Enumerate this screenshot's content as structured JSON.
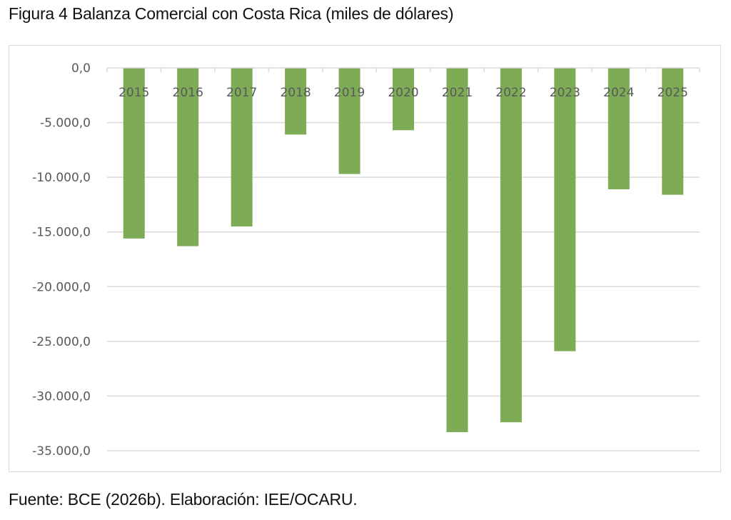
{
  "figure": {
    "title": "Figura 4 Balanza Comercial con Costa Rica (miles de dólares)",
    "source": "Fuente: BCE (2026b). Elaboración: IEE/OCARU."
  },
  "colors": {
    "bar": "#7eab55",
    "gridline": "#d9d9d9",
    "axis_text": "#595959",
    "frame": "#d9d9d9"
  },
  "chart_data": {
    "type": "bar",
    "title": "Figura 4 Balanza Comercial con Costa Rica (miles de dólares)",
    "xlabel": "",
    "ylabel": "",
    "categories": [
      "2015",
      "2016",
      "2017",
      "2018",
      "2019",
      "2020",
      "2021",
      "2022",
      "2023",
      "2024",
      "2025"
    ],
    "values": [
      -15600,
      -16300,
      -14500,
      -6100,
      -9700,
      -5700,
      -33300,
      -32400,
      -25900,
      -11100,
      -11600
    ],
    "ylim": [
      -35000,
      0
    ],
    "yticks": [
      0,
      -5000,
      -10000,
      -15000,
      -20000,
      -25000,
      -30000,
      -35000
    ],
    "ytick_labels": [
      "0,0",
      "-5.000,0",
      "-10.000,0",
      "-15.000,0",
      "-20.000,0",
      "-25.000,0",
      "-30.000,0",
      "-35.000,0"
    ],
    "grid": true,
    "legend": "none",
    "x_labels_position": "top, below zero line"
  }
}
